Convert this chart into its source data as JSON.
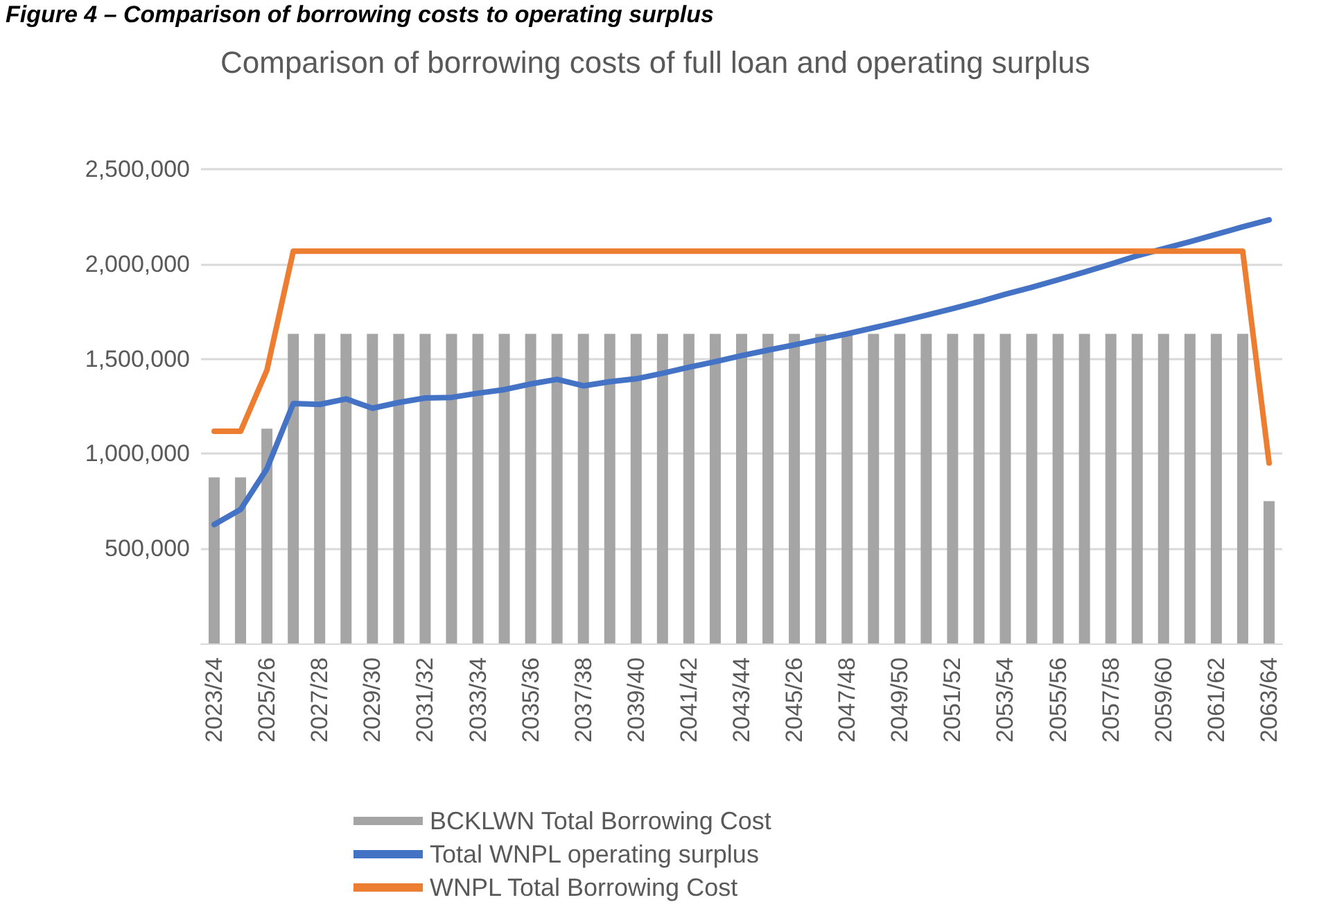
{
  "chart_data": {
    "type": "bar",
    "title": "Comparison of borrowing costs of full loan and operating surplus",
    "annotations": [
      "Figure 4 – Comparison of borrowing costs to operating surplus"
    ],
    "categories": [
      "2023/24",
      null,
      "2025/26",
      null,
      "2027/28",
      null,
      "2029/30",
      null,
      "2031/32",
      null,
      "2033/34",
      null,
      "2035/36",
      null,
      "2037/38",
      null,
      "2039/40",
      null,
      "2041/42",
      null,
      "2043/44",
      null,
      "2045/26",
      null,
      "2047/48",
      null,
      "2049/50",
      null,
      "2051/52",
      null,
      "2053/54",
      null,
      "2055/56",
      null,
      "2057/58",
      null,
      "2059/60",
      null,
      "2061/62",
      null,
      "2063/64"
    ],
    "series": [
      {
        "name": "BCKLWN Total Borrowing Cost",
        "color": "#a5a5a5",
        "values": [
          875000,
          875000,
          1132000,
          1632000,
          1632000,
          1632000,
          1632000,
          1632000,
          1632000,
          1632000,
          1632000,
          1632000,
          1632000,
          1632000,
          1632000,
          1632000,
          1632000,
          1632000,
          1632000,
          1632000,
          1632000,
          1632000,
          1632000,
          1632000,
          1632000,
          1632000,
          1632000,
          1632000,
          1632000,
          1632000,
          1632000,
          1632000,
          1632000,
          1632000,
          1632000,
          1632000,
          1632000,
          1632000,
          1632000,
          1632000,
          750000
        ]
      },
      {
        "name": "Total WNPL operating surplus",
        "type": "line",
        "color": "#4472c4",
        "values": [
          627000,
          706000,
          921000,
          1265000,
          1260000,
          1289000,
          1240000,
          1270000,
          1294000,
          1297000,
          1319000,
          1338000,
          1368000,
          1392000,
          1358000,
          1380000,
          1395000,
          1424000,
          1456000,
          1485000,
          1517000,
          1546000,
          1574000,
          1603000,
          1632000,
          1664000,
          1696000,
          1730000,
          1765000,
          1801000,
          1841000,
          1877000,
          1917000,
          1958000,
          2000000,
          2044000,
          2081000,
          2118000,
          2157000,
          2196000,
          2233000
        ]
      },
      {
        "name": "WNPL Total Borrowing Cost",
        "type": "line",
        "color": "#ed7d31",
        "values": [
          1118000,
          1118000,
          1441000,
          2068000,
          2068000,
          2068000,
          2068000,
          2068000,
          2068000,
          2068000,
          2068000,
          2068000,
          2068000,
          2068000,
          2068000,
          2068000,
          2068000,
          2068000,
          2068000,
          2068000,
          2068000,
          2068000,
          2068000,
          2068000,
          2068000,
          2068000,
          2068000,
          2068000,
          2068000,
          2068000,
          2068000,
          2068000,
          2068000,
          2068000,
          2068000,
          2068000,
          2068000,
          2068000,
          2068000,
          2068000,
          951000
        ]
      }
    ],
    "ylim": [
      0,
      2500000
    ],
    "yticks": [
      {
        "value": 500000,
        "label": "500,000"
      },
      {
        "value": 1000000,
        "label": "1,000,000"
      },
      {
        "value": 1500000,
        "label": "1,500,000"
      },
      {
        "value": 2000000,
        "label": "2,000,000"
      },
      {
        "value": 2500000,
        "label": "2,500,000"
      }
    ],
    "grid": "y",
    "legend": "bottom",
    "marker": "none"
  }
}
